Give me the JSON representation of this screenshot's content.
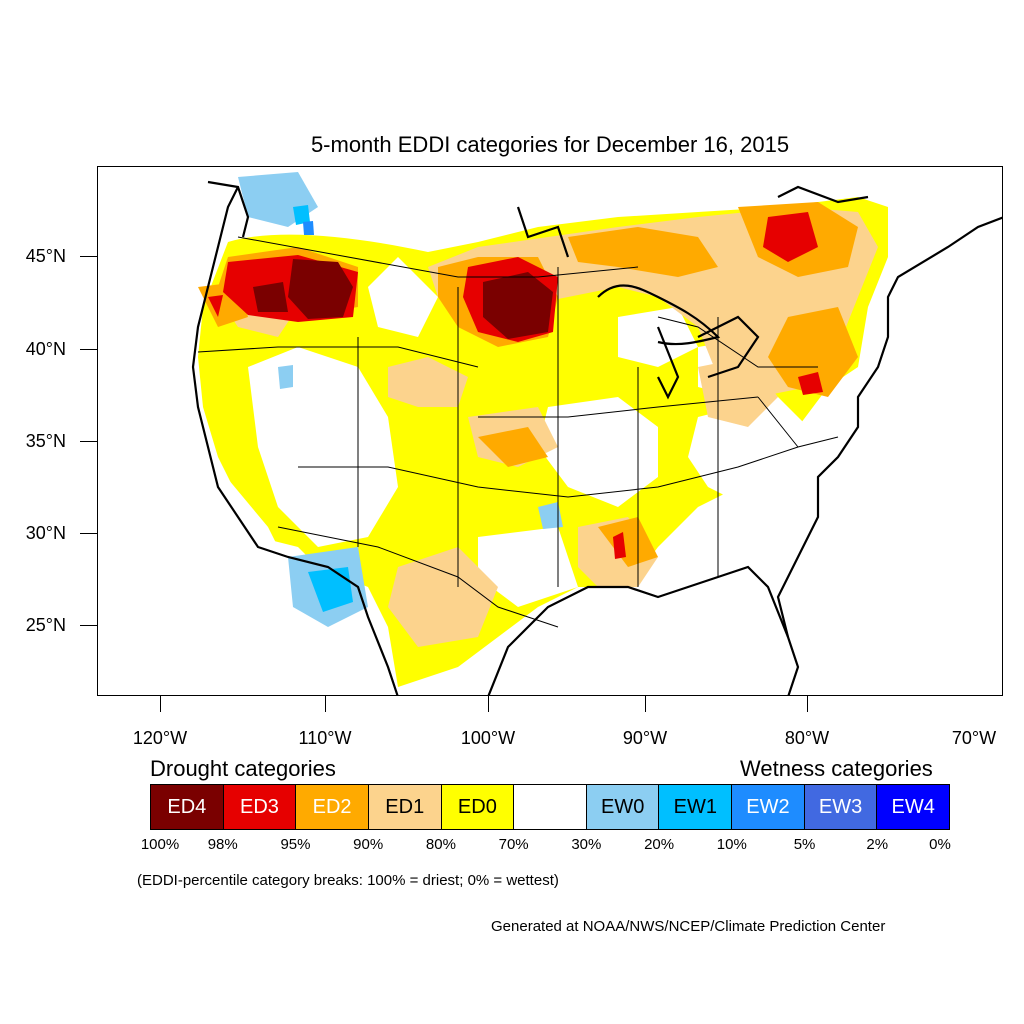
{
  "title": "5-month EDDI categories for December 16, 2015",
  "lat_labels": [
    "45°N",
    "40°N",
    "35°N",
    "30°N",
    "25°N"
  ],
  "lon_labels": [
    "120°W",
    "110°W",
    "100°W",
    "90°W",
    "80°W",
    "70°W"
  ],
  "legend": {
    "drought_heading": "Drought categories",
    "wetness_heading": "Wetness categories",
    "categories": [
      {
        "label": "ED4",
        "color": "#7a0000",
        "text_color": "#ffffff"
      },
      {
        "label": "ED3",
        "color": "#e60000",
        "text_color": "#ffffff"
      },
      {
        "label": "ED2",
        "color": "#ffaa00",
        "text_color": "#ffffff"
      },
      {
        "label": "ED1",
        "color": "#fcd38d",
        "text_color": "#000000"
      },
      {
        "label": "ED0",
        "color": "#ffff00",
        "text_color": "#000000"
      },
      {
        "label": "",
        "color": "#ffffff",
        "text_color": "#000000"
      },
      {
        "label": "EW0",
        "color": "#8ccef2",
        "text_color": "#000000"
      },
      {
        "label": "EW1",
        "color": "#00bfff",
        "text_color": "#000000"
      },
      {
        "label": "EW2",
        "color": "#1e8cff",
        "text_color": "#ffffff"
      },
      {
        "label": "EW3",
        "color": "#4169e1",
        "text_color": "#ffffff"
      },
      {
        "label": "EW4",
        "color": "#0000ff",
        "text_color": "#ffffff"
      }
    ],
    "percentiles": [
      "100%",
      "98%",
      "95%",
      "90%",
      "80%",
      "70%",
      "30%",
      "20%",
      "10%",
      "5%",
      "2%",
      "0%"
    ]
  },
  "note": "(EDDI-percentile category breaks: 100% = driest; 0% = wettest)",
  "credit": "Generated at NOAA/NWS/NCEP/Climate Prediction Center"
}
